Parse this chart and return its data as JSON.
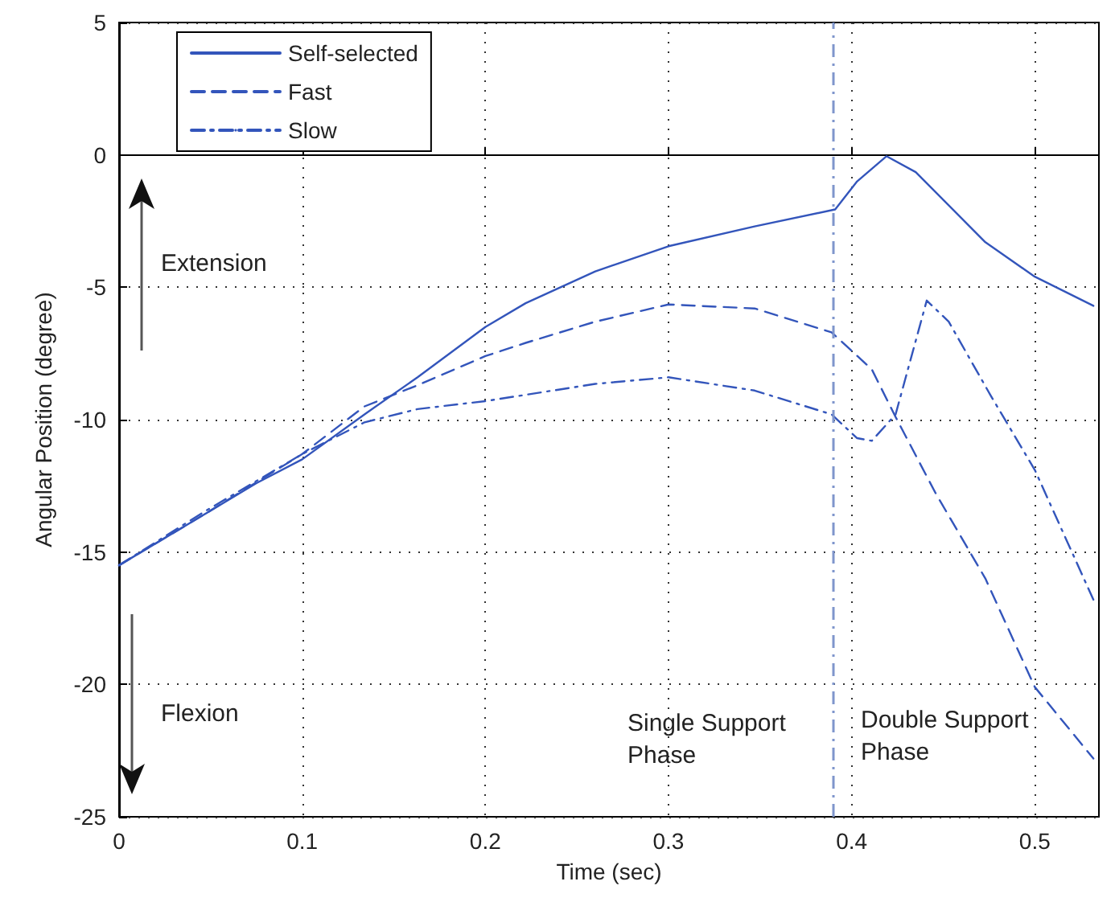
{
  "chart_data": {
    "type": "line",
    "xlabel": "Time (sec)",
    "ylabel": "Angular Position (degree)",
    "xlim": [
      0,
      0.535
    ],
    "xticks": [
      0,
      0.1,
      0.2,
      0.3,
      0.4,
      0.5
    ],
    "ylim": [
      -25,
      5
    ],
    "yticks": [
      -25,
      -20,
      -15,
      -10,
      -5,
      0,
      5
    ],
    "grid": true,
    "legend": "top left",
    "marker": "none",
    "series": [
      {
        "name": "Self-selected",
        "color": "#3355bb",
        "line_style": "solid",
        "x": [
          0,
          0.034,
          0.075,
          0.1,
          0.134,
          0.163,
          0.2,
          0.222,
          0.26,
          0.3,
          0.347,
          0.391,
          0.403,
          0.419,
          0.435,
          0.473,
          0.5,
          0.532
        ],
        "values": [
          -15.5,
          -14.1,
          -12.4,
          -11.5,
          -9.8,
          -8.4,
          -6.5,
          -5.6,
          -4.4,
          -3.45,
          -2.7,
          -2.06,
          -1.0,
          -0.05,
          -0.65,
          -3.3,
          -4.6,
          -5.7
        ]
      },
      {
        "name": "Fast",
        "color": "#3355bb",
        "line_style": "dashed",
        "x": [
          0,
          0.046,
          0.1,
          0.134,
          0.163,
          0.2,
          0.222,
          0.26,
          0.3,
          0.347,
          0.389,
          0.411,
          0.424,
          0.446,
          0.473,
          0.5,
          0.532
        ],
        "values": [
          -15.5,
          -13.6,
          -11.3,
          -9.5,
          -8.7,
          -7.6,
          -7.1,
          -6.3,
          -5.65,
          -5.8,
          -6.7,
          -8.1,
          -9.9,
          -12.8,
          -16.0,
          -20.1,
          -22.8
        ]
      },
      {
        "name": "Slow",
        "color": "#3355bb",
        "line_style": "dashdot",
        "x": [
          0,
          0.046,
          0.1,
          0.134,
          0.163,
          0.2,
          0.26,
          0.3,
          0.347,
          0.389,
          0.403,
          0.411,
          0.424,
          0.441,
          0.453,
          0.476,
          0.5,
          0.532
        ],
        "values": [
          -15.5,
          -13.5,
          -11.3,
          -10.1,
          -9.6,
          -9.3,
          -8.65,
          -8.4,
          -8.9,
          -9.8,
          -10.7,
          -10.8,
          -9.8,
          -5.5,
          -6.3,
          -9.1,
          -11.9,
          -16.8
        ]
      }
    ],
    "ref_lines": [
      {
        "axis": "x",
        "value": 0.39,
        "color": "#7f95cc",
        "line_style": "dashdot"
      }
    ],
    "annotations": [
      "Extension",
      "Flexion",
      "Single Support\nPhase",
      "Double Support\nPhase"
    ]
  }
}
